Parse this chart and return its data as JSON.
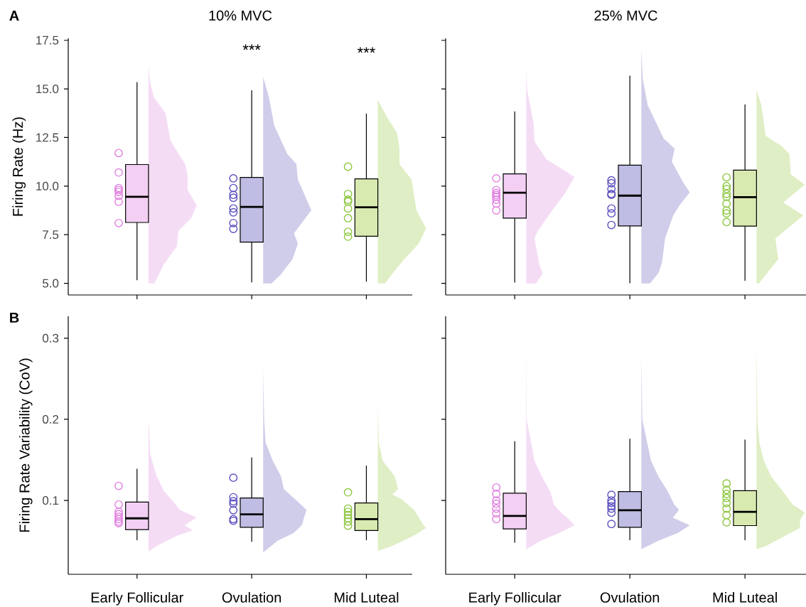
{
  "chart_data": [
    {
      "type": "box",
      "title": "10% MVC",
      "ylabel": "Firing Rate (Hz)",
      "categories": [
        "Early Follicular",
        "Ovulation",
        "Mid Luteal"
      ],
      "ylim": [
        4.4,
        17.6
      ],
      "yticks": [
        {
          "value": 5,
          "label": "5.0"
        },
        7.5,
        {
          "value": 10,
          "label": "10.0"
        },
        12.5,
        {
          "value": 15,
          "label": "15.0"
        },
        17.5
      ],
      "tick_labels": "y",
      "annotations": [
        "A",
        "***",
        "***"
      ],
      "series": [
        {
          "type": "box",
          "colors": [
            "#f3d0f3",
            "#bfbde3",
            "#d9eab0"
          ],
          "boxes": [
            {
              "low": 5.16,
              "q1": 8.13,
              "median": 9.45,
              "q3": 11.11,
              "high": 15.35
            },
            {
              "low": 5.05,
              "q1": 7.12,
              "median": 8.93,
              "q3": 10.45,
              "high": 14.93
            },
            {
              "low": 5.08,
              "q1": 7.42,
              "median": 8.91,
              "q3": 10.37,
              "high": 13.73
            }
          ]
        },
        {
          "type": "scatter",
          "marker": "circle",
          "color": "#e07fe0",
          "x": [
            "Early Follicular",
            "Early Follicular",
            "Early Follicular",
            "Early Follicular",
            "Early Follicular",
            "Early Follicular",
            "Early Follicular",
            "Early Follicular"
          ],
          "values": [
            11.7,
            10.7,
            9.9,
            9.8,
            9.7,
            9.5,
            9.2,
            8.1
          ]
        },
        {
          "type": "scatter",
          "marker": "circle",
          "color": "#5b50c0",
          "x": [
            "Ovulation",
            "Ovulation",
            "Ovulation",
            "Ovulation",
            "Ovulation",
            "Ovulation",
            "Ovulation",
            "Ovulation"
          ],
          "values": [
            10.4,
            9.9,
            9.55,
            9.4,
            8.85,
            8.65,
            8.1,
            7.8
          ]
        },
        {
          "type": "scatter",
          "marker": "circle",
          "color": "#8cc63f",
          "x": [
            "Mid Luteal",
            "Mid Luteal",
            "Mid Luteal",
            "Mid Luteal",
            "Mid Luteal",
            "Mid Luteal",
            "Mid Luteal",
            "Mid Luteal"
          ],
          "values": [
            11.0,
            9.6,
            9.3,
            9.2,
            8.85,
            8.35,
            7.65,
            7.4
          ]
        }
      ]
    },
    {
      "type": "box",
      "title": "25% MVC",
      "categories": [
        "Early Follicular",
        "Ovulation",
        "Mid Luteal"
      ],
      "ylim": [
        4.4,
        17.6
      ],
      "yticks": [
        5,
        7.5,
        10,
        12.5,
        15,
        17.5
      ],
      "tick_labels": false,
      "series": [
        {
          "type": "box",
          "colors": [
            "#f3d0f3",
            "#bfbde3",
            "#d9eab0"
          ],
          "boxes": [
            {
              "low": 5.04,
              "q1": 8.35,
              "median": 9.66,
              "q3": 10.63,
              "high": 13.84
            },
            {
              "low": 5.0,
              "q1": 7.95,
              "median": 9.51,
              "q3": 11.08,
              "high": 15.68
            },
            {
              "low": 5.13,
              "q1": 7.94,
              "median": 9.43,
              "q3": 10.82,
              "high": 14.2
            }
          ]
        },
        {
          "type": "scatter",
          "marker": "circle",
          "color": "#e07fe0",
          "x": [
            "Early Follicular",
            "Early Follicular",
            "Early Follicular",
            "Early Follicular",
            "Early Follicular",
            "Early Follicular",
            "Early Follicular",
            "Early Follicular"
          ],
          "values": [
            10.4,
            9.8,
            9.65,
            9.55,
            9.45,
            9.3,
            9.1,
            8.75
          ]
        },
        {
          "type": "scatter",
          "marker": "circle",
          "color": "#5b50c0",
          "x": [
            "Ovulation",
            "Ovulation",
            "Ovulation",
            "Ovulation",
            "Ovulation",
            "Ovulation",
            "Ovulation",
            "Ovulation"
          ],
          "values": [
            10.3,
            10.15,
            9.85,
            9.6,
            9.55,
            8.85,
            8.6,
            8.0
          ]
        },
        {
          "type": "scatter",
          "marker": "circle",
          "color": "#8cc63f",
          "x": [
            "Mid Luteal",
            "Mid Luteal",
            "Mid Luteal",
            "Mid Luteal",
            "Mid Luteal",
            "Mid Luteal",
            "Mid Luteal",
            "Mid Luteal",
            "Mid Luteal"
          ],
          "values": [
            10.45,
            10.0,
            9.85,
            9.6,
            9.45,
            9.1,
            8.75,
            8.6,
            8.15
          ]
        }
      ]
    },
    {
      "type": "box",
      "ylabel": "Firing Rate Variability (CoV)",
      "categories": [
        "Early Follicular",
        "Ovulation",
        "Mid Luteal"
      ],
      "ylim": [
        0.009,
        0.327
      ],
      "yticks": [
        0.1,
        0.2,
        0.3
      ],
      "annotations": [
        "B"
      ],
      "series": [
        {
          "type": "box",
          "colors": [
            "#f3d0f3",
            "#bfbde3",
            "#d9eab0"
          ],
          "boxes": [
            {
              "low": 0.051,
              "q1": 0.064,
              "median": 0.078,
              "q3": 0.098,
              "high": 0.139
            },
            {
              "low": 0.049,
              "q1": 0.067,
              "median": 0.083,
              "q3": 0.103,
              "high": 0.153
            },
            {
              "low": 0.051,
              "q1": 0.063,
              "median": 0.077,
              "q3": 0.097,
              "high": 0.143
            }
          ]
        },
        {
          "type": "scatter",
          "marker": "circle",
          "color": "#e07fe0",
          "x": [
            "Early Follicular",
            "Early Follicular",
            "Early Follicular",
            "Early Follicular",
            "Early Follicular",
            "Early Follicular",
            "Early Follicular",
            "Early Follicular"
          ],
          "values": [
            0.118,
            0.095,
            0.086,
            0.083,
            0.08,
            0.077,
            0.074,
            0.072
          ]
        },
        {
          "type": "scatter",
          "marker": "circle",
          "color": "#5b50c0",
          "x": [
            "Ovulation",
            "Ovulation",
            "Ovulation",
            "Ovulation",
            "Ovulation",
            "Ovulation",
            "Ovulation"
          ],
          "values": [
            0.128,
            0.104,
            0.099,
            0.096,
            0.088,
            0.077,
            0.075
          ]
        },
        {
          "type": "scatter",
          "marker": "circle",
          "color": "#8cc63f",
          "x": [
            "Mid Luteal",
            "Mid Luteal",
            "Mid Luteal",
            "Mid Luteal",
            "Mid Luteal",
            "Mid Luteal",
            "Mid Luteal"
          ],
          "values": [
            0.11,
            0.09,
            0.086,
            0.082,
            0.078,
            0.074,
            0.069
          ]
        }
      ]
    },
    {
      "type": "box",
      "categories": [
        "Early Follicular",
        "Ovulation",
        "Mid Luteal"
      ],
      "ylim": [
        0.009,
        0.327
      ],
      "yticks": [
        0.1,
        0.2,
        0.3
      ],
      "tick_labels": "x",
      "series": [
        {
          "type": "box",
          "colors": [
            "#f3d0f3",
            "#bfbde3",
            "#d9eab0"
          ],
          "boxes": [
            {
              "low": 0.048,
              "q1": 0.065,
              "median": 0.081,
              "q3": 0.109,
              "high": 0.173
            },
            {
              "low": 0.051,
              "q1": 0.067,
              "median": 0.088,
              "q3": 0.111,
              "high": 0.176
            },
            {
              "low": 0.051,
              "q1": 0.069,
              "median": 0.086,
              "q3": 0.112,
              "high": 0.175
            }
          ]
        },
        {
          "type": "scatter",
          "marker": "circle",
          "color": "#e07fe0",
          "x": [
            "Early Follicular",
            "Early Follicular",
            "Early Follicular",
            "Early Follicular",
            "Early Follicular",
            "Early Follicular",
            "Early Follicular"
          ],
          "values": [
            0.116,
            0.108,
            0.1,
            0.096,
            0.09,
            0.084,
            0.077
          ]
        },
        {
          "type": "scatter",
          "marker": "circle",
          "color": "#5b50c0",
          "x": [
            "Ovulation",
            "Ovulation",
            "Ovulation",
            "Ovulation",
            "Ovulation",
            "Ovulation",
            "Ovulation"
          ],
          "values": [
            0.107,
            0.1,
            0.097,
            0.093,
            0.09,
            0.085,
            0.071
          ]
        },
        {
          "type": "scatter",
          "marker": "circle",
          "color": "#8cc63f",
          "x": [
            "Mid Luteal",
            "Mid Luteal",
            "Mid Luteal",
            "Mid Luteal",
            "Mid Luteal",
            "Mid Luteal",
            "Mid Luteal",
            "Mid Luteal"
          ],
          "values": [
            0.121,
            0.113,
            0.108,
            0.103,
            0.097,
            0.09,
            0.082,
            0.073
          ]
        }
      ]
    }
  ]
}
